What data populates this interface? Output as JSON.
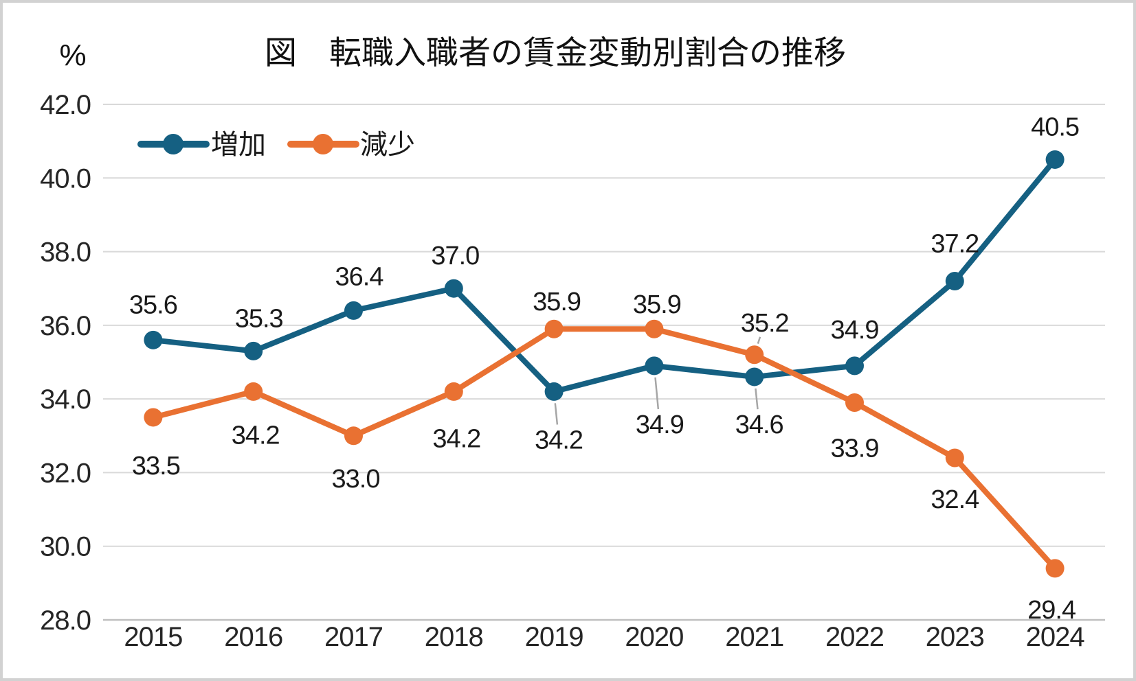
{
  "chart_data": {
    "type": "line",
    "title": "図　転職入職者の賃金変動別割合の推移",
    "y_unit": "%",
    "categories": [
      "2015",
      "2016",
      "2017",
      "2018",
      "2019",
      "2020",
      "2021",
      "2022",
      "2023",
      "2024"
    ],
    "series": [
      {
        "key": "increase",
        "name": "増加",
        "color": "#156082",
        "values": [
          35.6,
          35.3,
          36.4,
          37.0,
          34.2,
          34.9,
          34.6,
          34.9,
          37.2,
          40.5
        ],
        "labels": [
          "35.6",
          "35.3",
          "36.4",
          "37.0",
          "34.2",
          "34.9",
          "34.6",
          "34.9",
          "37.2",
          "40.5"
        ],
        "label_offsets": [
          [
            0,
            -52
          ],
          [
            8,
            -48
          ],
          [
            8,
            -50
          ],
          [
            2,
            -48
          ],
          [
            7,
            70
          ],
          [
            8,
            85
          ],
          [
            7,
            69
          ],
          [
            0,
            -53
          ],
          [
            0,
            -55
          ],
          [
            0,
            -48
          ]
        ],
        "leader_indices": [
          4,
          5,
          6
        ]
      },
      {
        "key": "decrease",
        "name": "減少",
        "color": "#E97132",
        "values": [
          33.5,
          34.2,
          33.0,
          34.2,
          35.9,
          35.9,
          35.2,
          33.9,
          32.4,
          29.4
        ],
        "labels": [
          "33.5",
          "34.2",
          "33.0",
          "34.2",
          "35.9",
          "35.9",
          "35.2",
          "33.9",
          "32.4",
          "29.4"
        ],
        "label_offsets": [
          [
            4,
            70
          ],
          [
            3,
            63
          ],
          [
            3,
            62
          ],
          [
            4,
            68
          ],
          [
            4,
            -40
          ],
          [
            4,
            -36
          ],
          [
            15,
            -47
          ],
          [
            0,
            66
          ],
          [
            0,
            60
          ],
          [
            -5,
            60
          ]
        ],
        "leader_indices": [
          6
        ]
      }
    ],
    "ylim": [
      28.0,
      42.0
    ],
    "y_tick_step": 2.0,
    "y_tick_labels": [
      "42.0",
      "40.0",
      "38.0",
      "36.0",
      "34.0",
      "32.0",
      "30.0",
      "28.0"
    ],
    "grid": true,
    "legend_position": "top-left",
    "colors": {
      "gridline": "#D9D9D9",
      "axis_line": "#BFBFBF",
      "leader_line": "#A6A6A6",
      "label_text": "#1A1A1A",
      "tick_text": "#262626",
      "title_text": "#111111",
      "background": "#FFFFFF",
      "border": "#D2D2D2"
    }
  }
}
